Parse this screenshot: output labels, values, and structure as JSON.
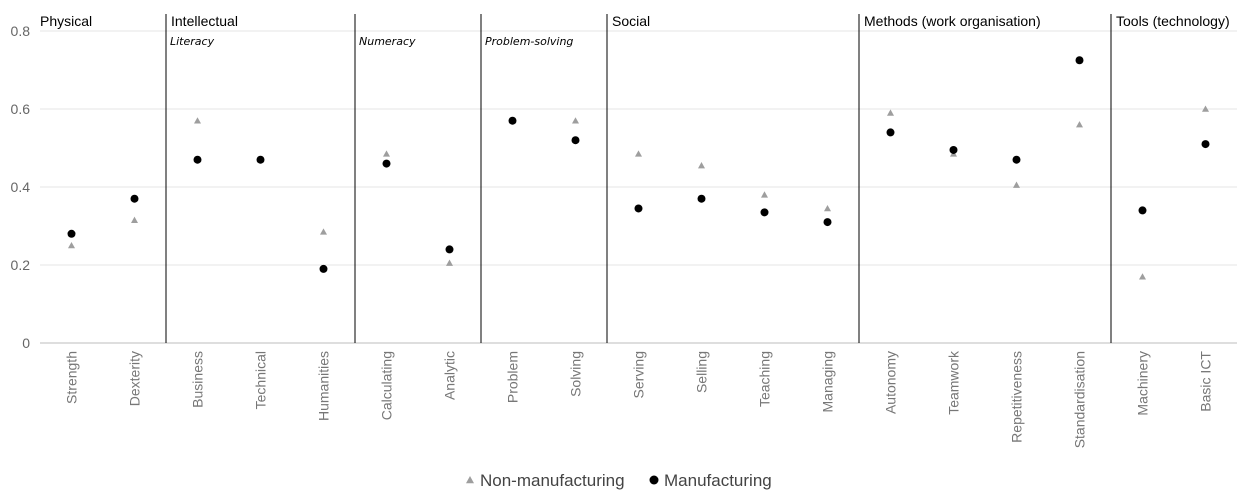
{
  "chart_data": {
    "type": "scatter",
    "categories": [
      "Strength",
      "Dexterity",
      "Business",
      "Technical",
      "Humanities",
      "Calculating",
      "Analytic",
      "Problem",
      "Solving",
      "Serving",
      "Selling",
      "Teaching",
      "Managing",
      "Autonomy",
      "Teamwork",
      "Repetitiveness",
      "Standardisation",
      "Machinery",
      "Basic ICT"
    ],
    "ylim": [
      0,
      0.8
    ],
    "yticks": [
      "0",
      "0.2",
      "0.4",
      "0.6",
      "0.8"
    ],
    "grid": true,
    "legend_position": "bottom",
    "series": [
      {
        "name": "Non-manufacturing",
        "marker": "triangle",
        "color": "#9e9e9e",
        "values": [
          0.25,
          0.315,
          0.57,
          0.47,
          0.285,
          0.485,
          0.205,
          0.57,
          0.57,
          0.485,
          0.455,
          0.38,
          0.345,
          0.59,
          0.485,
          0.405,
          0.56,
          0.17,
          0.6
        ]
      },
      {
        "name": "Manufacturing",
        "marker": "circle",
        "color": "#000000",
        "values": [
          0.28,
          0.37,
          0.47,
          0.47,
          0.19,
          0.46,
          0.24,
          0.57,
          0.52,
          0.345,
          0.37,
          0.335,
          0.31,
          0.54,
          0.495,
          0.47,
          0.725,
          0.34,
          0.51
        ]
      }
    ],
    "groups": [
      {
        "label": "Physical",
        "span": [
          0,
          1
        ]
      },
      {
        "label": "Intellectual",
        "span": [
          2,
          8
        ]
      },
      {
        "label": "Social",
        "span": [
          9,
          12
        ]
      },
      {
        "label": "Methods (work organisation)",
        "span": [
          13,
          16
        ]
      },
      {
        "label": "Tools (technology)",
        "span": [
          17,
          18
        ]
      }
    ],
    "subgroups": [
      {
        "label": "Literacy",
        "span": [
          2,
          4
        ]
      },
      {
        "label": "Numeracy",
        "span": [
          5,
          6
        ]
      },
      {
        "label": "Problem-solving",
        "span": [
          7,
          8
        ]
      }
    ],
    "dividers_after": [
      1,
      4,
      6,
      8,
      12,
      16
    ]
  }
}
